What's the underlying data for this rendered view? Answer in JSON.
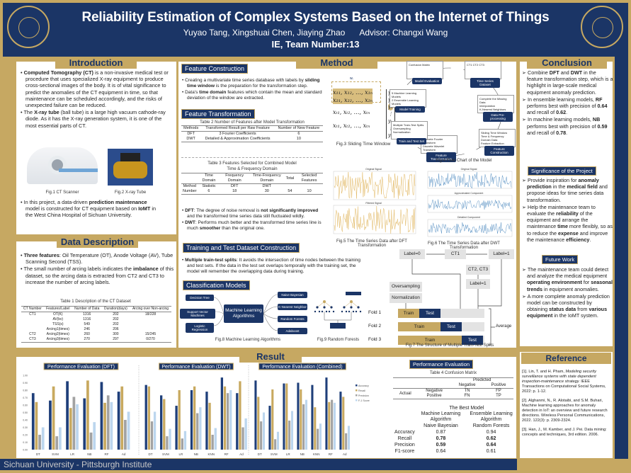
{
  "header": {
    "title": "Reliability Estimation of Complex Systems Based on the Internet of Things",
    "authors": "Yuyao Tang, Xingshuai Chen, Jiaying Zhao",
    "advisor": "Advisor: Changxi Wang",
    "team": "IE, Team Number:13",
    "left_logo": "Sichuan University 1896",
    "right_logo": "University of Pittsburgh"
  },
  "colors": {
    "navy": "#1b3566",
    "gold": "#c6a862",
    "accuracy": "#1f3f7a",
    "recall": "#c8a95f",
    "precision": "#a2a2a2",
    "f1": "#bcd6ee"
  },
  "intro": {
    "title": "Introduction",
    "b1_bold": "Computed Tomography (CT)",
    "b1": " is a non-invasive medical test or procedure that uses specialized X-ray equipment to produce cross-sectional images of the body. It is of vital significance to predict the anomalies of the CT equipment in time, so that maintenance can be scheduled accordingly, and the risks of unexpected failure can be reduced.",
    "b2_pre": "The ",
    "b2_bold": "X-ray tube",
    "b2": " (ball tube) is a large high vacuum cathode-ray diode.  As it has the X-ray generation system, it is one of the most essential parts of CT.",
    "fig1": "Fig.1  CT Scanner",
    "fig2": "Fig.2  X-ray Tube",
    "b3_pre": "In this project, a data-driven ",
    "b3_bold": "prediction maintenance",
    "b3_mid": " model is constructed for CT equipment based on ",
    "b3_bold2": "IoMT",
    "b3_end": " in the West China Hospital of Sichuan University."
  },
  "data_desc": {
    "title": "Data Description",
    "b1_bold": "Three features",
    "b1": ": Oil Temperature (OT), Anode Voltage (AV), Tube Scanning Second (TSS).",
    "b2_pre": "The small number of arcing labels indicates the ",
    "b2_bold": "imbalance",
    "b2": " of this dataset, so the arcing data is extracted from CT2 and CT3 to increase the number of arcing labels.",
    "table_caption": "Table 1  Description of the CT Dataset",
    "headers": [
      "CT Number",
      "Features/Label",
      "Number of Data",
      "Duration(days)",
      "Arcing over Non-arcing"
    ],
    "rows": [
      [
        "CT1",
        "OT(K)",
        "1316",
        "202",
        "18/228"
      ],
      [
        "",
        "AV(kv)",
        "1316",
        "202",
        ""
      ],
      [
        "",
        "TSS(s)",
        "549",
        "202",
        ""
      ],
      [
        "",
        "Arcing1(times)",
        "246",
        "206",
        ""
      ],
      [
        "CT2",
        "Arcing2(times)",
        "260",
        "300",
        "15/245"
      ],
      [
        "CT3",
        "Arcing3(times)",
        "270",
        "297",
        "0/270"
      ]
    ]
  },
  "method": {
    "title": "Method",
    "fc_label": "Feature Construction",
    "fc_b1_pre": "Creating a multivariate time series database with labels by ",
    "fc_b1_bold": "sliding time window",
    "fc_b1": " is the preparation for the transformation step.",
    "fc_b2_pre": "Data's ",
    "fc_b2_bold": "time domain",
    "fc_b2": " features which contain the mean and standard deviation of the window are extracted.",
    "ft_label": "Feature Transformation",
    "t2_caption": "Table 2  Number of Features after Model Transformation",
    "t2_headers": [
      "Methods",
      "Transformed Result per Raw Feature",
      "Number of New Feature"
    ],
    "t2_rows": [
      [
        "DFT",
        "3 Fourier Coefficients",
        "6"
      ],
      [
        "DWT",
        "Detailed & Approximation Coefficients",
        "10"
      ]
    ],
    "t3_caption": "Table 3  Features Selected for Combined Model",
    "t3_group": "Time & Frequency Domain",
    "t3_headers": [
      "",
      "Time Domain",
      "Frequency Domain",
      "Time-Frequency Domain",
      "Total",
      "Selected Features"
    ],
    "t3_rows": [
      [
        "Method",
        "Statistic",
        "DFT",
        "DWT",
        "",
        ""
      ],
      [
        "Number",
        "6",
        "18",
        "30",
        "54",
        "10"
      ]
    ],
    "dft_bold": "DFT",
    "dft_a": ": The degree of noise removal is ",
    "dft_bold2": "not significantly improved",
    "dft_b": " and the transformed time series data still fluctuated wildly.",
    "dwt_bold": "DWT",
    "dwt_a": ": Performs much better and the transformed time series line is much ",
    "dwt_bold2": "smoother",
    "dwt_b": " than the original one.",
    "tt_label": "Training and Test Dataset Construction",
    "tt_bold": "Multiple train-test splits",
    "tt": ": It avoids the intersection of time nodes between the training and test sets. If the data in the test set overlaps temporally with the training set, the model will remember the overlapping data during training.",
    "cm_label": "Classification Models",
    "fig3": {
      "caption": "Fig.3  Sliding Time Window",
      "w": "wᵢ",
      "row1": "x₁₁, x₁₂, …, x₁ₙ",
      "row2": "x₂₁, x₂₂, …, x₂ₙ",
      "row3": "xₜ₁, xₜ₂, …, xₜₙ",
      "row4": "xₜ₁, xₜ₂, …, xₜₙ",
      "y": [
        "y₁",
        "y₂",
        "y₃",
        "⋮",
        "yₜ",
        "⋮",
        "yₜ"
      ]
    },
    "fig4": {
      "caption": "Fig.4  Flow Chart of the Model",
      "nodes": [
        {
          "label": "Model Evaluation",
          "items": [
            "Confusion Matrix"
          ]
        },
        {
          "label": "Time Series Dataset",
          "items": [
            "CT1 CT2 CT3"
          ]
        },
        {
          "label": "Data Pre-processing",
          "items": [
            "Complete the Missing Data",
            "Interpolation",
            "K-Nearest Neighbors"
          ]
        },
        {
          "label": "Feature Construction",
          "items": [
            "Sliding Time Window",
            "Time & Frequency Domain Data",
            "Feature Extraction"
          ]
        },
        {
          "label": "Feature Transformation",
          "items": [
            "Discrete Fourier Transform",
            "Discrete Wavelet Transform"
          ]
        },
        {
          "label": "Train and Test Set",
          "items": [
            "Multiple Train-Test Splits",
            "Oversampling",
            "Normalization"
          ]
        },
        {
          "label": "Model Training",
          "items": [
            "5 Machine Learning Models",
            "2 Ensemble Learning Models"
          ]
        }
      ]
    },
    "fig5": {
      "caption": "Fig.5  The Time Series Data after DFT Transformation",
      "p1": "Original Signal",
      "p2": "Filtered Signal"
    },
    "fig6": {
      "caption": "Fig.6  The Time Series Data after DWT Transformation",
      "p1": "Original Signal",
      "p2": "Approximated Component",
      "p3": "Detailed Component"
    },
    "fig7": {
      "caption": "Fig.7  The Structure of Multiple Train-Test Splits",
      "label0": "Label=0",
      "ct1": "CT1",
      "label1": "Label=1",
      "ct23": "CT2, CT3",
      "label1b": "Label=1",
      "oversampling": "Oversampling",
      "normalization": "Normalization",
      "folds": [
        "Fold 1",
        "Fold 2",
        "Fold 3"
      ],
      "train": "Train",
      "test": "Test",
      "average": "Average"
    },
    "fig8": {
      "caption": "Fig.8  Machine Learning Algorithms",
      "center": "Machine Learning Algorithms",
      "left": [
        "Decision Tree",
        "Support Vector Machines",
        "Logistic Regression"
      ],
      "right": [
        "Naive Bayesian",
        "K-Nearest Neighbor",
        "Random Forests",
        "Adaboost"
      ]
    },
    "fig9": {
      "caption": "Fig.9  Random Forests"
    }
  },
  "conclusion": {
    "title": "Conclusion",
    "c1": [
      "Combine ",
      "DFT",
      " and ",
      "DWT",
      " in the feature transformation step, which is a highlight in large-scale medical equipment anomaly prediction."
    ],
    "c2": [
      "In ensemble learning models, ",
      "RF",
      " performs best with precision of ",
      "0.64",
      " and recall of ",
      "0.62",
      "."
    ],
    "c3": [
      "In machine learning models, ",
      "NB",
      " performs best with precision of ",
      "0.59",
      " and recall of ",
      "0.78",
      "."
    ],
    "sig_label": "Significance of the Project",
    "s1": [
      "Provide inspiration for ",
      "anomaly prediction",
      " in the ",
      "medical field",
      " and propose ideas for time series data transformation."
    ],
    "s2": [
      "Help the maintenance team to evaluate the ",
      "reliability",
      " of the equipment and arrange the maintenance ",
      "time",
      " more flexibly, so as to reduce the ",
      "expense",
      " and improve the maintenance ",
      "efficiency",
      "."
    ],
    "fw_label": "Future Work",
    "f1": [
      "The maintenance team could detect and analyze the medical equipment ",
      "operating environment",
      " for ",
      "seasonal trends",
      " in equipment anomalies."
    ],
    "f2": [
      "A more complete anomaly prediction model can be constructed by obtaining ",
      "status data",
      " from ",
      "various equipment",
      " in the IoMT system."
    ]
  },
  "reference": {
    "title": "Reference",
    "items": [
      [
        "[1]. Lin, T. and H. Pham, ",
        "Modeling security surveillance systems with state dependent inspection-maintenance strategy.",
        "",
        " IEEE Transactions on Computational Social Systems, 2022: p. 1-12."
      ],
      [
        "[2]. Alghanmi, N., R. Alotaibi, and S.M. Buhari, Machine learning approaches for anomaly detection in IoT: an overview and future research directions. Wireless Personal Communications, 2022. 122(3): p. 2309-2324.",
        "",
        ""
      ],
      [
        "[3]. Han, J., M. Kamber, and J. Pei. Data mining: concepts and techniques, 3rd edition. 2006.",
        "",
        ""
      ]
    ]
  },
  "result": {
    "title": "Result",
    "pe_label": "Performance Evaluation",
    "t4_caption": "Table 4  Confusion Matrix",
    "t4": {
      "predicted": "Predicted",
      "negative": "Negative",
      "positive": "Positive",
      "actual": "Actual",
      "tn": "TN",
      "fp": "FP",
      "fn": "FN",
      "tp": "TP"
    },
    "best": {
      "title": "The Best Model",
      "col1": "Machine Learning Algorithm",
      "col2": "Ensemble Learning Algorithm",
      "model1": "Naive Bayesian",
      "model2": "Random Forests",
      "rows": [
        [
          "Accuracy",
          "0.87",
          "0.94"
        ],
        [
          "Recall",
          "0.78",
          "0.62"
        ],
        [
          "Precision",
          "0.59",
          "0.64"
        ],
        [
          "F1-score",
          "0.64",
          "0.61"
        ]
      ]
    }
  },
  "chart_data": [
    {
      "type": "bar",
      "title": "Performance Evaluation (DFT)",
      "categories": [
        "DT",
        "SVM",
        "LR",
        "NB",
        "RF",
        "Ad"
      ],
      "ylim": [
        0,
        1
      ],
      "yticks": [
        "0.00",
        "0.10",
        "0.20",
        "0.30",
        "0.40",
        "0.50",
        "0.60",
        "0.70",
        "0.80",
        "0.90",
        "1.00"
      ],
      "series": [
        {
          "name": "Accuracy",
          "values": [
            0.76,
            0.66,
            0.92,
            0.69,
            0.91,
            0.78
          ]
        },
        {
          "name": "Recall",
          "values": [
            0.64,
            0.85,
            0.56,
            0.93,
            0.63,
            0.85
          ]
        },
        {
          "name": "Precision",
          "values": [
            0.2,
            0.18,
            0.71,
            0.23,
            0.73,
            0.4
          ]
        },
        {
          "name": "F-1 Score",
          "values": [
            0.3,
            0.3,
            0.61,
            0.37,
            0.64,
            0.51
          ]
        }
      ]
    },
    {
      "type": "bar",
      "title": "Performance Evaluation (DWT)",
      "categories": [
        "DT",
        "SVM",
        "LR",
        "NB",
        "KNN",
        "RF",
        "Ad"
      ],
      "ylim": [
        0,
        1
      ],
      "series": [
        {
          "name": "Accuracy",
          "values": [
            0.87,
            0.73,
            0.59,
            0.8,
            0.78,
            0.97,
            0.76
          ]
        },
        {
          "name": "Recall",
          "values": [
            0.85,
            0.68,
            0.8,
            0.85,
            0.63,
            0.85,
            0.92
          ]
        },
        {
          "name": "Precision",
          "values": [
            0.38,
            0.18,
            0.15,
            0.49,
            0.2,
            0.76,
            0.3
          ]
        },
        {
          "name": "F-1 Score",
          "values": [
            0.51,
            0.28,
            0.25,
            0.57,
            0.29,
            0.8,
            0.42
          ]
        }
      ]
    },
    {
      "type": "bar",
      "title": "Performance Evaluation (Combined)",
      "categories": [
        "DT",
        "SVM",
        "LR",
        "NB",
        "KNN",
        "RF",
        "Ad"
      ],
      "ylim": [
        0,
        1
      ],
      "legend": "right",
      "series": [
        {
          "name": "Accuracy",
          "values": [
            0.93,
            0.59,
            0.89,
            0.9,
            0.87,
            0.97,
            0.78
          ]
        },
        {
          "name": "Recall",
          "values": [
            0.71,
            0.81,
            0.89,
            0.81,
            0.57,
            0.64,
            0.71
          ]
        },
        {
          "name": "Precision",
          "values": [
            0.38,
            0.14,
            0.39,
            0.61,
            0.28,
            0.67,
            0.22
          ]
        },
        {
          "name": "F-1 Score",
          "values": [
            0.5,
            0.24,
            0.52,
            0.67,
            0.35,
            0.63,
            0.32
          ]
        }
      ]
    }
  ],
  "footer": "Sichuan University - Pittsburgh Institute"
}
